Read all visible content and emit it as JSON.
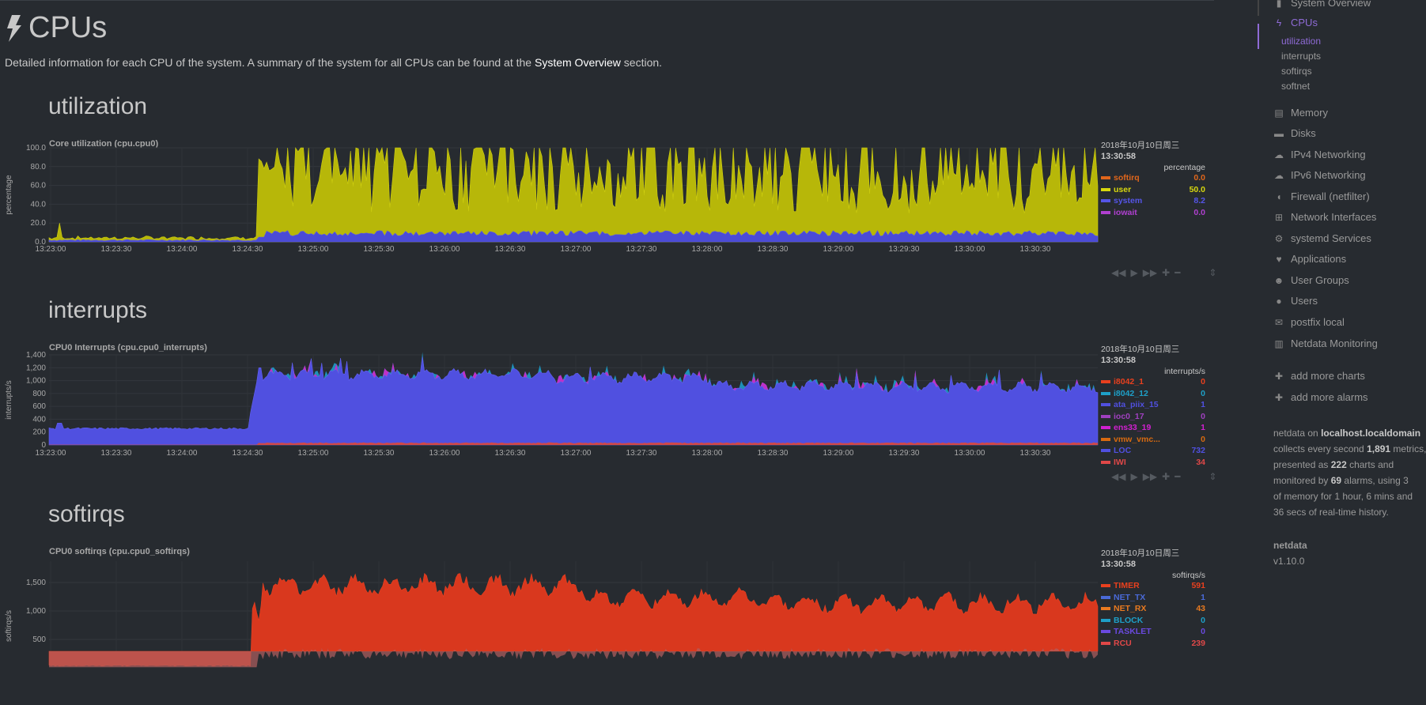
{
  "page": {
    "title": "CPUs",
    "description_before": "Detailed information for each CPU of the system. A summary of the system for all CPUs can be found at the ",
    "description_link": "System Overview",
    "description_after": " section."
  },
  "colors": {
    "background": "#272b30",
    "accent": "#8f6bd6",
    "user": "#b7b709",
    "system": "#4b4bd6",
    "timer": "#d9381e"
  },
  "x_ticks": [
    "13:23:00",
    "13:23:30",
    "13:24:00",
    "13:24:30",
    "13:25:00",
    "13:25:30",
    "13:26:00",
    "13:26:30",
    "13:27:00",
    "13:27:30",
    "13:28:00",
    "13:28:30",
    "13:29:00",
    "13:29:30",
    "13:30:00",
    "13:30:30"
  ],
  "sections": [
    {
      "name": "utilization",
      "chart_title": "Core utilization (cpu.cpu0)",
      "ylabel": "percentage",
      "y_ticks": [
        "100.0",
        "80.0",
        "60.0",
        "40.0",
        "20.0",
        "0.0"
      ],
      "date": "2018年10月10日周三",
      "time": "13:30:58",
      "units": "percentage",
      "legend": [
        {
          "name": "softirq",
          "value": "0.0",
          "color": "#e0661b"
        },
        {
          "name": "user",
          "value": "50.0",
          "color": "#d8d80e"
        },
        {
          "name": "system",
          "value": "8.2",
          "color": "#5555e8"
        },
        {
          "name": "iowait",
          "value": "0.0",
          "color": "#b040d0"
        }
      ]
    },
    {
      "name": "interrupts",
      "chart_title": "CPU0 Interrupts (cpu.cpu0_interrupts)",
      "ylabel": "interrupts/s",
      "y_ticks": [
        "1,400",
        "1,200",
        "1,000",
        "800",
        "600",
        "400",
        "200",
        "0"
      ],
      "date": "2018年10月10日周三",
      "time": "13:30:58",
      "units": "interrupts/s",
      "legend": [
        {
          "name": "i8042_1",
          "value": "0",
          "color": "#e8401e"
        },
        {
          "name": "i8042_12",
          "value": "0",
          "color": "#1ea0c8"
        },
        {
          "name": "ata_piix_15",
          "value": "1",
          "color": "#5050e0"
        },
        {
          "name": "ioc0_17",
          "value": "0",
          "color": "#a040c0"
        },
        {
          "name": "ens33_19",
          "value": "1",
          "color": "#d020d0"
        },
        {
          "name": "vmw_vmc...",
          "value": "0",
          "color": "#d86a10"
        },
        {
          "name": "LOC",
          "value": "732",
          "color": "#5050e0"
        },
        {
          "name": "IWI",
          "value": "34",
          "color": "#e04848"
        }
      ]
    },
    {
      "name": "softirqs",
      "chart_title": "CPU0 softirqs (cpu.cpu0_softirqs)",
      "ylabel": "softirqs/s",
      "y_ticks": [
        "1,500",
        "1,000",
        "500"
      ],
      "date": "2018年10月10日周三",
      "time": "13:30:58",
      "units": "softirqs/s",
      "legend": [
        {
          "name": "TIMER",
          "value": "591",
          "color": "#e8401e"
        },
        {
          "name": "NET_TX",
          "value": "1",
          "color": "#4a6ad8"
        },
        {
          "name": "NET_RX",
          "value": "43",
          "color": "#e87a20"
        },
        {
          "name": "BLOCK",
          "value": "0",
          "color": "#1ea0c8"
        },
        {
          "name": "TASKLET",
          "value": "0",
          "color": "#6a4ae0"
        },
        {
          "name": "RCU",
          "value": "239",
          "color": "#e04848"
        }
      ]
    }
  ],
  "sidebar": {
    "items": [
      {
        "label": "System Overview",
        "icon": "bookmark-icon",
        "glyph": "▮"
      },
      {
        "label": "CPUs",
        "icon": "bolt-icon",
        "glyph": "ϟ"
      },
      {
        "label": "Memory",
        "icon": "memory-icon",
        "glyph": "▤"
      },
      {
        "label": "Disks",
        "icon": "hdd-icon",
        "glyph": "▬"
      },
      {
        "label": "IPv4 Networking",
        "icon": "cloud-icon",
        "glyph": "☁"
      },
      {
        "label": "IPv6 Networking",
        "icon": "cloud-icon",
        "glyph": "☁"
      },
      {
        "label": "Firewall (netfilter)",
        "icon": "shield-icon",
        "glyph": "◖"
      },
      {
        "label": "Network Interfaces",
        "icon": "sitemap-icon",
        "glyph": "⊞"
      },
      {
        "label": "systemd Services",
        "icon": "cogs-icon",
        "glyph": "⚙"
      },
      {
        "label": "Applications",
        "icon": "heartbeat-icon",
        "glyph": "♥"
      },
      {
        "label": "User Groups",
        "icon": "users-icon",
        "glyph": "☻"
      },
      {
        "label": "Users",
        "icon": "user-icon",
        "glyph": "●"
      },
      {
        "label": "postfix local",
        "icon": "envelope-icon",
        "glyph": "✉"
      },
      {
        "label": "Netdata Monitoring",
        "icon": "chart-icon",
        "glyph": "▥"
      }
    ],
    "sub_items": [
      "utilization",
      "interrupts",
      "softirqs",
      "softnet"
    ],
    "add_charts": "add more charts",
    "add_alarms": "add more alarms",
    "info": {
      "l1a": "netdata on ",
      "l1b": "localhost.localdomain",
      "l2a": "collects every second ",
      "l2b": "1,891",
      "l2c": " metrics,",
      "l3a": "presented as ",
      "l3b": "222",
      "l3c": " charts and",
      "l4a": "monitored by ",
      "l4b": "69",
      "l4c": " alarms, using 3",
      "l5": "of memory for 1 hour, 6 mins and",
      "l6": "36 secs of real-time history."
    },
    "brand": "netdata",
    "version": "v1.10.0"
  }
}
